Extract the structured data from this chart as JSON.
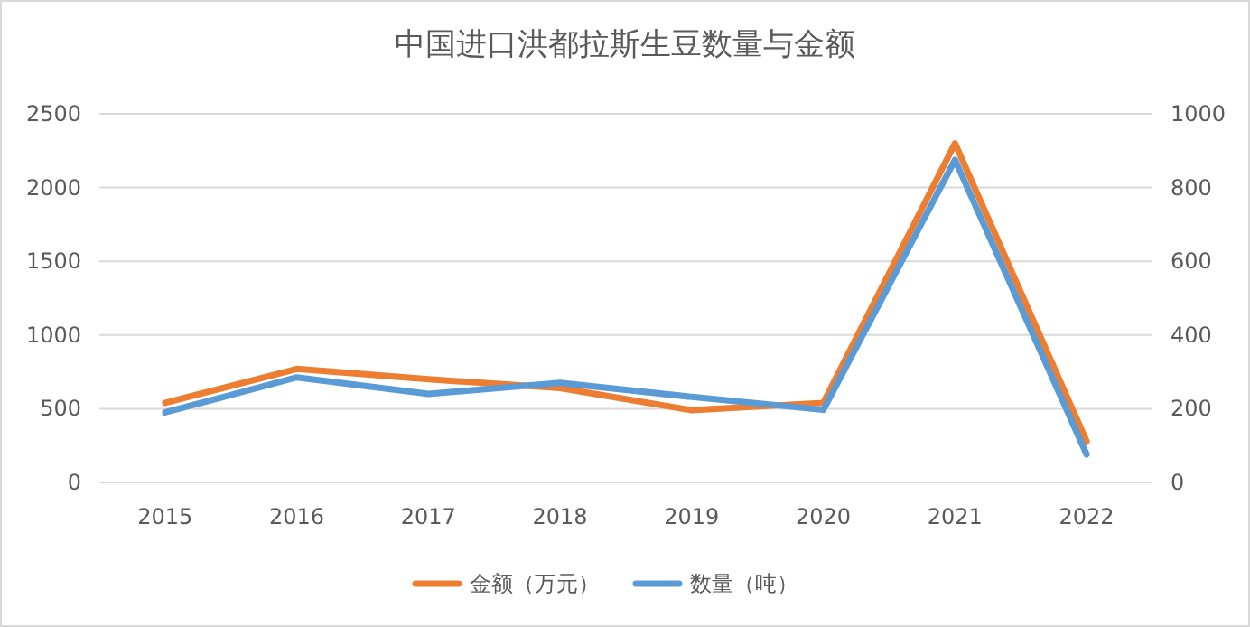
{
  "chart_data": {
    "type": "line",
    "title": "中国进口洪都拉斯生豆数量与金额",
    "categories": [
      "2015",
      "2016",
      "2017",
      "2018",
      "2019",
      "2020",
      "2021",
      "2022"
    ],
    "series": [
      {
        "name": "金额（万元）",
        "color": "#ed7d31",
        "values": [
          540,
          770,
          700,
          640,
          490,
          540,
          2300,
          280
        ]
      },
      {
        "name": "数量（吨）",
        "color": "#5b9bd5",
        "axis": "y2",
        "values": [
          190,
          285,
          240,
          270,
          232,
          197,
          875,
          76
        ]
      }
    ],
    "ylim": [
      0,
      2500
    ],
    "yticks": [
      0,
      500,
      1000,
      1500,
      2000,
      2500
    ],
    "y2lim": [
      0,
      1000
    ],
    "y2ticks": [
      0,
      200,
      400,
      600,
      800,
      1000
    ],
    "grid": "y",
    "legend": "bottom",
    "marker": "none",
    "line_style": "solid"
  }
}
